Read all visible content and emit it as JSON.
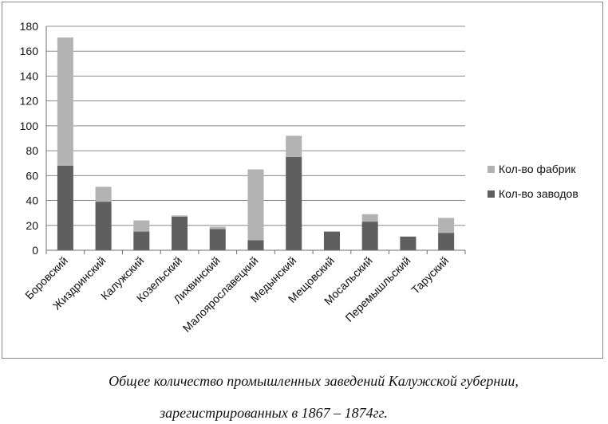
{
  "chart_data": {
    "type": "bar",
    "stacked": true,
    "categories": [
      "Боровский",
      "Жиздринский",
      "Калужский",
      "Козельский",
      "Лихвинский",
      "Малоярославецкий",
      "Медынский",
      "Мещовский",
      "Мосальский",
      "Перемышльский",
      "Таруский"
    ],
    "series": [
      {
        "name": "Кол-во заводов",
        "color": "#5f5f5f",
        "values": [
          68,
          39,
          15,
          27,
          17,
          8,
          75,
          15,
          23,
          11,
          14
        ]
      },
      {
        "name": "Кол-во фабрик",
        "color": "#b3b3b3",
        "values": [
          103,
          12,
          9,
          1,
          2,
          57,
          17,
          0,
          6,
          0,
          12
        ]
      }
    ],
    "ylim": [
      0,
      180
    ],
    "yticks": [
      0,
      20,
      40,
      60,
      80,
      100,
      120,
      140,
      160,
      180
    ],
    "grid": true,
    "legend_position": "right",
    "title": "",
    "xlabel": "",
    "ylabel": ""
  },
  "legend": {
    "items": [
      {
        "label": "Кол-во фабрик",
        "color": "#b3b3b3"
      },
      {
        "label": "Кол-во заводов",
        "color": "#5f5f5f"
      }
    ]
  },
  "caption": {
    "line1": "Общее количество промышленных заведений Калужской губернии,",
    "line2": "зарегистрированных в 1867 – 1874гг."
  }
}
